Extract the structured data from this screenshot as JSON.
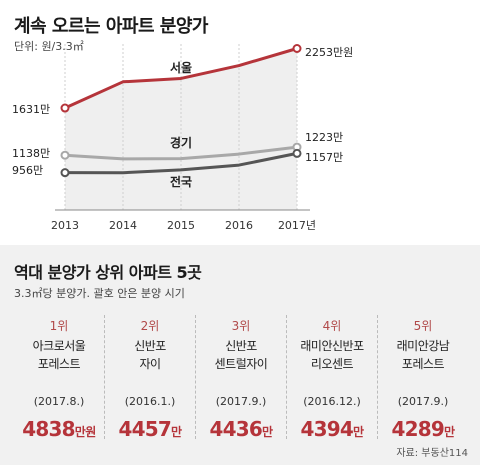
{
  "chart_data": {
    "type": "line",
    "title": "계속 오르는 아파트 분양가",
    "unit_label": "단위: 원/3.3㎡",
    "categories": [
      "2013",
      "2014",
      "2015",
      "2016",
      "2017년"
    ],
    "series": [
      {
        "name": "서울",
        "values": [
          1631,
          1905,
          1940,
          2075,
          2253
        ],
        "color": "#b5343a",
        "start_label": "1631만",
        "end_label": "2253만원"
      },
      {
        "name": "경기",
        "values": [
          1138,
          1100,
          1103,
          1150,
          1223
        ],
        "color": "#a8a8a8",
        "start_label": "1138만",
        "end_label": "1223만"
      },
      {
        "name": "전국",
        "values": [
          956,
          955,
          985,
          1035,
          1157
        ],
        "color": "#555555",
        "start_label": "956만",
        "end_label": "1157만"
      }
    ],
    "grid": true
  },
  "section2": {
    "title": "역대 분양가 상위 아파트 5곳",
    "subtitle": "3.3㎡당 분양가. 괄호 안은 분양 시기",
    "items": [
      {
        "rank": "1위",
        "name": "아크로서울\n포레스트",
        "period": "(2017.8.)",
        "price": "4838",
        "unit": "만원"
      },
      {
        "rank": "2위",
        "name": "신반포\n자이",
        "period": "(2016.1.)",
        "price": "4457",
        "unit": "만"
      },
      {
        "rank": "3위",
        "name": "신반포\n센트럴자이",
        "period": "(2017.9.)",
        "price": "4436",
        "unit": "만"
      },
      {
        "rank": "4위",
        "name": "래미안신반포\n리오센트",
        "period": "(2016.12.)",
        "price": "4394",
        "unit": "만"
      },
      {
        "rank": "5위",
        "name": "래미안강남\n포레스트",
        "period": "(2017.9.)",
        "price": "4289",
        "unit": "만"
      }
    ],
    "source": "자료: 부동산114"
  }
}
